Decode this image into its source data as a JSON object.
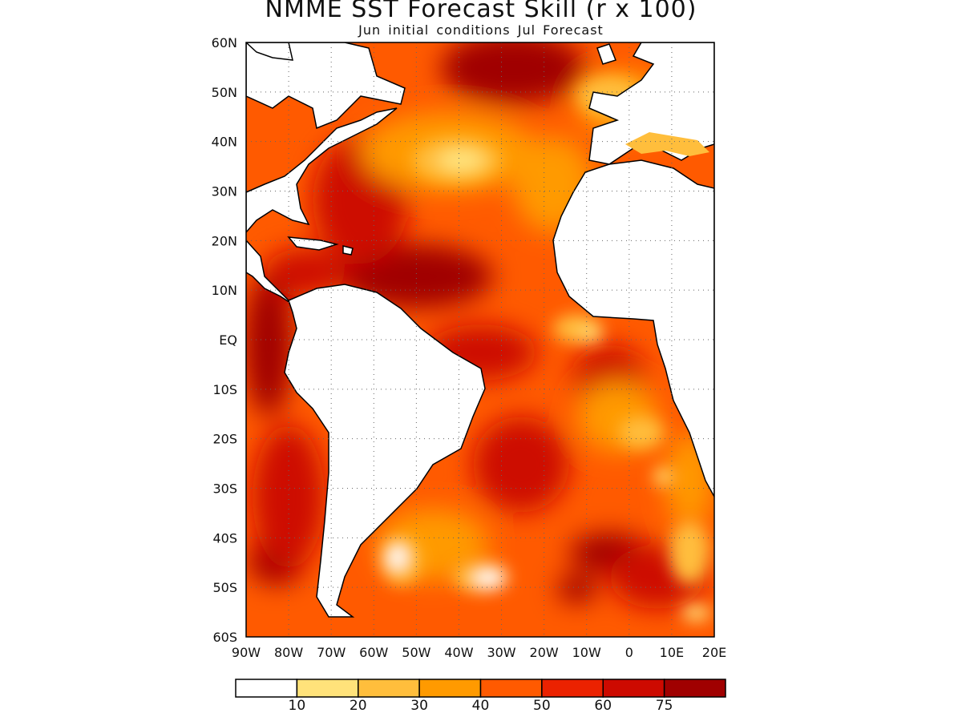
{
  "title": "NMME SST Forecast Skill (r x 100)",
  "subtitle": "Jun initial conditions  Jul Forecast",
  "map": {
    "lat_labels": [
      "60N",
      "50N",
      "40N",
      "30N",
      "20N",
      "10N",
      "EQ",
      "10S",
      "20S",
      "30S",
      "40S",
      "50S",
      "60S"
    ],
    "lon_labels": [
      "90W",
      "80W",
      "70W",
      "60W",
      "50W",
      "40W",
      "30W",
      "20W",
      "10W",
      "0",
      "10E",
      "20E"
    ],
    "lat_range": [
      -60,
      60
    ],
    "lon_range": [
      -90,
      20
    ],
    "grid": "dotted"
  },
  "colorbar": {
    "labels": [
      "10",
      "20",
      "30",
      "40",
      "50",
      "60",
      "75"
    ],
    "colors": [
      "#ffffff",
      "#ffe27a",
      "#ffbe3c",
      "#ff9a00",
      "#ff5a00",
      "#eb2200",
      "#cd0a00",
      "#a00000"
    ]
  },
  "colors": {
    "land": "#ffffff",
    "coast": "#000000"
  }
}
